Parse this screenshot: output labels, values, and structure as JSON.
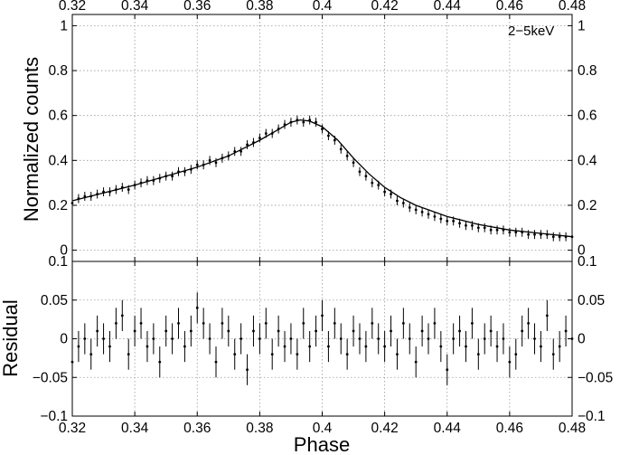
{
  "chart_data": [
    {
      "type": "scatter",
      "title": "",
      "annotation": "2−5keV",
      "xlabel": "",
      "ylabel": "Normalized counts",
      "xlim": [
        0.32,
        0.48
      ],
      "ylim": [
        -0.05,
        1.05
      ],
      "xticks": [
        "0.32",
        "0.34",
        "0.36",
        "0.38",
        "0.4",
        "0.42",
        "0.44",
        "0.46",
        "0.48"
      ],
      "yticks": [
        "0",
        "0.2",
        "0.4",
        "0.6",
        "0.8",
        "1"
      ],
      "grid": true,
      "error_bars": true,
      "series": [
        {
          "style": "points-with-error-bars",
          "x": [
            0.32,
            0.322,
            0.324,
            0.326,
            0.328,
            0.33,
            0.332,
            0.334,
            0.336,
            0.338,
            0.34,
            0.342,
            0.344,
            0.346,
            0.348,
            0.35,
            0.352,
            0.354,
            0.356,
            0.358,
            0.36,
            0.362,
            0.364,
            0.366,
            0.368,
            0.37,
            0.372,
            0.374,
            0.376,
            0.378,
            0.38,
            0.382,
            0.384,
            0.386,
            0.388,
            0.39,
            0.392,
            0.394,
            0.396,
            0.398,
            0.4,
            0.402,
            0.404,
            0.406,
            0.408,
            0.41,
            0.412,
            0.414,
            0.416,
            0.418,
            0.42,
            0.422,
            0.424,
            0.426,
            0.428,
            0.43,
            0.432,
            0.434,
            0.436,
            0.438,
            0.44,
            0.442,
            0.444,
            0.446,
            0.448,
            0.45,
            0.452,
            0.454,
            0.456,
            0.458,
            0.46,
            0.462,
            0.464,
            0.466,
            0.468,
            0.47,
            0.472,
            0.474,
            0.476,
            0.478,
            0.48
          ],
          "y": [
            0.21,
            0.23,
            0.24,
            0.24,
            0.25,
            0.26,
            0.26,
            0.27,
            0.28,
            0.27,
            0.29,
            0.3,
            0.31,
            0.31,
            0.32,
            0.33,
            0.33,
            0.35,
            0.35,
            0.36,
            0.38,
            0.38,
            0.4,
            0.39,
            0.41,
            0.42,
            0.44,
            0.44,
            0.47,
            0.48,
            0.5,
            0.52,
            0.52,
            0.54,
            0.56,
            0.57,
            0.58,
            0.57,
            0.58,
            0.57,
            0.54,
            0.51,
            0.49,
            0.45,
            0.42,
            0.39,
            0.35,
            0.33,
            0.3,
            0.29,
            0.26,
            0.25,
            0.22,
            0.21,
            0.19,
            0.18,
            0.17,
            0.16,
            0.15,
            0.14,
            0.13,
            0.13,
            0.12,
            0.11,
            0.11,
            0.1,
            0.1,
            0.09,
            0.09,
            0.09,
            0.08,
            0.08,
            0.08,
            0.07,
            0.07,
            0.07,
            0.07,
            0.06,
            0.06,
            0.06,
            0.06
          ],
          "yerr": 0.02
        },
        {
          "style": "model-line",
          "x": [
            0.32,
            0.33,
            0.34,
            0.35,
            0.36,
            0.37,
            0.38,
            0.385,
            0.39,
            0.393,
            0.396,
            0.4,
            0.405,
            0.41,
            0.415,
            0.42,
            0.425,
            0.43,
            0.44,
            0.45,
            0.46,
            0.47,
            0.48
          ],
          "y": [
            0.22,
            0.255,
            0.29,
            0.33,
            0.37,
            0.42,
            0.49,
            0.53,
            0.57,
            0.58,
            0.575,
            0.55,
            0.49,
            0.41,
            0.34,
            0.28,
            0.235,
            0.2,
            0.15,
            0.115,
            0.09,
            0.075,
            0.06
          ]
        }
      ]
    },
    {
      "type": "scatter",
      "title": "",
      "xlabel": "Phase",
      "ylabel": "Residual",
      "xlim": [
        0.32,
        0.48
      ],
      "ylim": [
        -0.1,
        0.1
      ],
      "xticks": [
        "0.32",
        "0.34",
        "0.36",
        "0.38",
        "0.4",
        "0.42",
        "0.44",
        "0.46",
        "0.48"
      ],
      "yticks": [
        "−0.1",
        "−0.05",
        "0",
        "0.05",
        "0.1"
      ],
      "grid": true,
      "error_bars": true,
      "series": [
        {
          "style": "points-with-error-bars",
          "x": [
            0.32,
            0.322,
            0.324,
            0.326,
            0.328,
            0.33,
            0.332,
            0.334,
            0.336,
            0.338,
            0.34,
            0.342,
            0.344,
            0.346,
            0.348,
            0.35,
            0.352,
            0.354,
            0.356,
            0.358,
            0.36,
            0.362,
            0.364,
            0.366,
            0.368,
            0.37,
            0.372,
            0.374,
            0.376,
            0.378,
            0.38,
            0.382,
            0.384,
            0.386,
            0.388,
            0.39,
            0.392,
            0.394,
            0.396,
            0.398,
            0.4,
            0.402,
            0.404,
            0.406,
            0.408,
            0.41,
            0.412,
            0.414,
            0.416,
            0.418,
            0.42,
            0.422,
            0.424,
            0.426,
            0.428,
            0.43,
            0.432,
            0.434,
            0.436,
            0.438,
            0.44,
            0.442,
            0.444,
            0.446,
            0.448,
            0.45,
            0.452,
            0.454,
            0.456,
            0.458,
            0.46,
            0.462,
            0.464,
            0.466,
            0.468,
            0.47,
            0.472,
            0.474,
            0.476,
            0.478,
            0.48
          ],
          "y": [
            -0.03,
            -0.01,
            0.0,
            -0.02,
            0.01,
            0.0,
            -0.01,
            0.02,
            0.03,
            -0.02,
            0.01,
            0.02,
            -0.01,
            0.0,
            -0.03,
            0.01,
            0.0,
            0.02,
            -0.01,
            0.01,
            0.04,
            0.02,
            0.0,
            -0.03,
            0.02,
            0.01,
            -0.02,
            0.0,
            -0.04,
            0.01,
            0.0,
            0.02,
            -0.02,
            0.01,
            -0.01,
            0.0,
            -0.02,
            0.02,
            -0.01,
            0.01,
            0.03,
            -0.01,
            0.02,
            0.0,
            -0.02,
            0.01,
            0.0,
            -0.01,
            0.02,
            0.0,
            -0.01,
            0.01,
            -0.02,
            0.02,
            0.0,
            -0.03,
            0.01,
            0.0,
            0.02,
            -0.01,
            -0.04,
            0.0,
            0.01,
            -0.01,
            0.02,
            -0.02,
            0.0,
            0.01,
            -0.01,
            0.0,
            -0.03,
            -0.02,
            0.01,
            0.02,
            0.0,
            -0.01,
            0.03,
            -0.02,
            -0.01,
            0.01,
            0.0
          ],
          "yerr": 0.02
        }
      ]
    }
  ]
}
